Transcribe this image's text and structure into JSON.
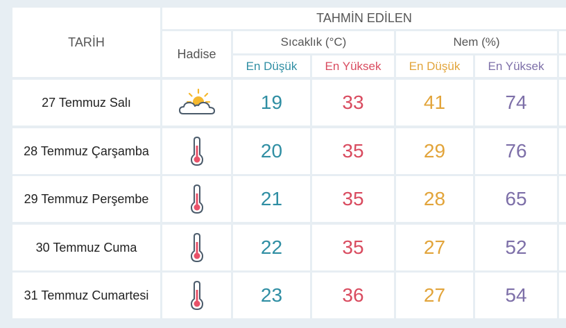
{
  "header": {
    "date_col": "TARİH",
    "event_col": "Hadise",
    "forecast_group": "TAHMİN EDİLEN",
    "temp_group": "Sıcaklık (°C)",
    "humidity_group": "Nem (%)",
    "temp_low": "En Düşük",
    "temp_high": "En Yüksek",
    "hum_low": "En Düşük",
    "hum_high": "En Yüksek"
  },
  "colors": {
    "temp_low": "#2f8ea3",
    "temp_high": "#d94b5f",
    "hum_low": "#e2a43a",
    "hum_high": "#7d6fa8"
  },
  "rows": [
    {
      "date": "27 Temmuz Salı",
      "icon": "partly-cloudy-icon",
      "t_low": "19",
      "t_high": "33",
      "h_low": "41",
      "h_high": "74"
    },
    {
      "date": "28 Temmuz Çarşamba",
      "icon": "thermometer-icon",
      "t_low": "20",
      "t_high": "35",
      "h_low": "29",
      "h_high": "76"
    },
    {
      "date": "29 Temmuz Perşembe",
      "icon": "thermometer-icon",
      "t_low": "21",
      "t_high": "35",
      "h_low": "28",
      "h_high": "65"
    },
    {
      "date": "30 Temmuz Cuma",
      "icon": "thermometer-icon",
      "t_low": "22",
      "t_high": "35",
      "h_low": "27",
      "h_high": "52"
    },
    {
      "date": "31 Temmuz Cumartesi",
      "icon": "thermometer-icon",
      "t_low": "23",
      "t_high": "36",
      "h_low": "27",
      "h_high": "54"
    }
  ]
}
